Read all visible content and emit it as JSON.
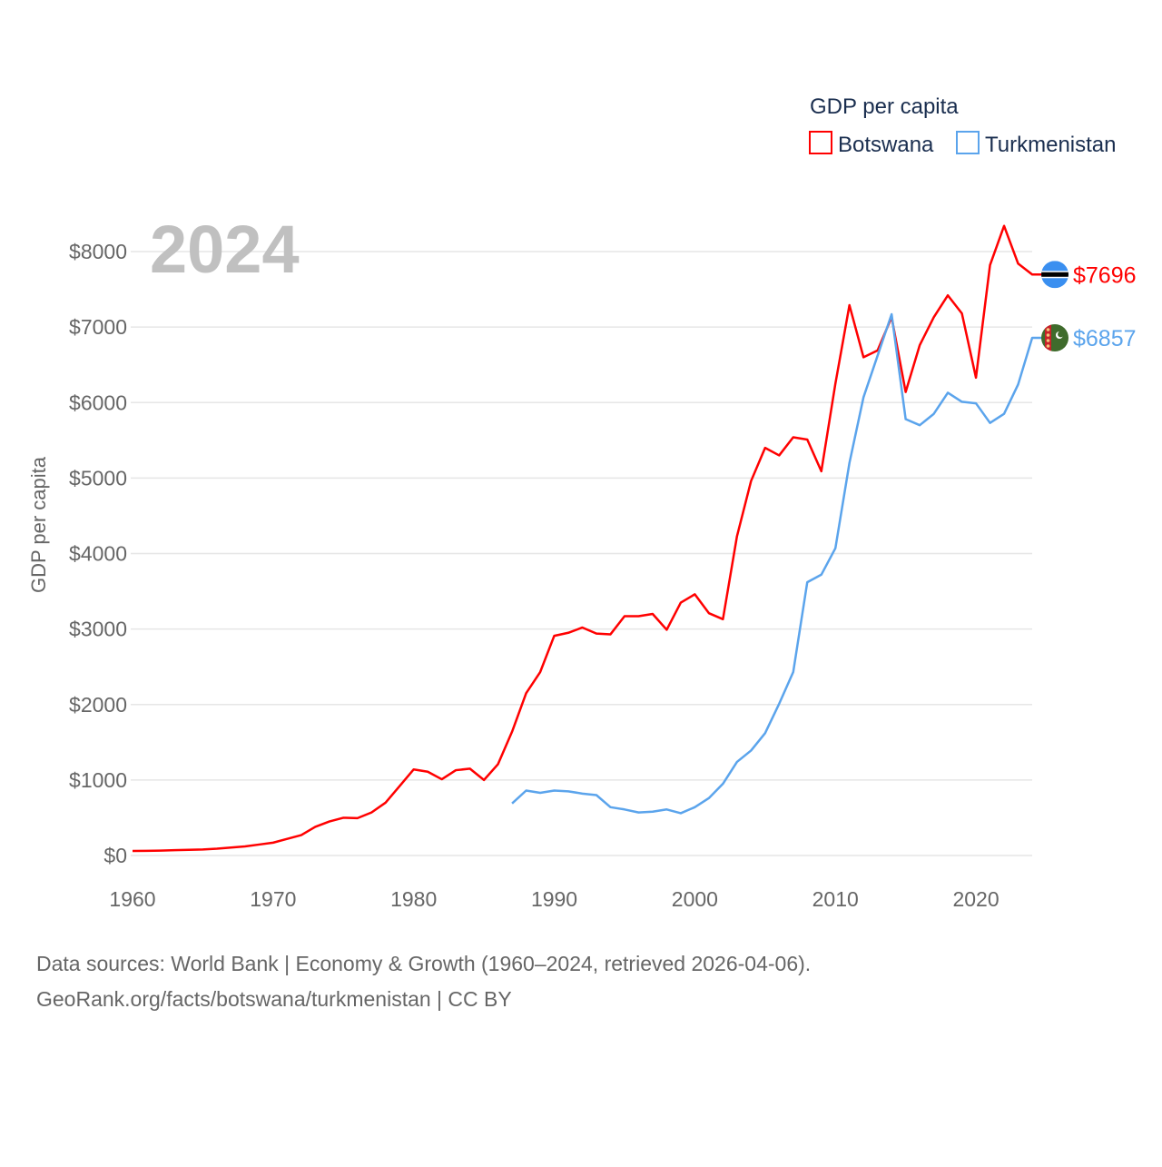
{
  "chart_data": {
    "type": "line",
    "title": "",
    "year_label": "2024",
    "xlabel": "",
    "ylabel": "GDP per capita",
    "xlim": [
      1960,
      2024
    ],
    "ylim": [
      0,
      8000
    ],
    "grid": true,
    "x_ticks": [
      1960,
      1970,
      1980,
      1990,
      2000,
      2010,
      2020
    ],
    "x_tick_labels": [
      "1960",
      "1970",
      "1980",
      "1990",
      "2000",
      "2010",
      "2020"
    ],
    "y_ticks": [
      0,
      1000,
      2000,
      3000,
      4000,
      5000,
      6000,
      7000,
      8000
    ],
    "y_tick_labels": [
      "$0",
      "$1000",
      "$2000",
      "$3000",
      "$4000",
      "$5000",
      "$6000",
      "$7000",
      "$8000"
    ],
    "legend": {
      "title": "GDP per capita",
      "position": "top-right"
    },
    "series": [
      {
        "name": "Botswana",
        "color": "#ff0000",
        "flag": "botswana-flag",
        "end_label": "$7696",
        "start_year": 1960,
        "values": [
          60,
          62,
          65,
          70,
          75,
          80,
          90,
          105,
          120,
          145,
          170,
          220,
          270,
          380,
          450,
          500,
          495,
          570,
          700,
          920,
          1140,
          1110,
          1010,
          1130,
          1150,
          1000,
          1210,
          1640,
          2150,
          2430,
          2910,
          2950,
          3020,
          2940,
          2930,
          3170,
          3170,
          3200,
          2990,
          3350,
          3460,
          3210,
          3130,
          4230,
          4960,
          5400,
          5300,
          5540,
          5510,
          5090,
          6250,
          7290,
          6600,
          6690,
          7130,
          6140,
          6760,
          7130,
          7420,
          7180,
          6330,
          7820,
          8340,
          7840,
          7696
        ]
      },
      {
        "name": "Turkmenistan",
        "color": "#5ba4ec",
        "flag": "turkmenistan-flag",
        "end_label": "$6857",
        "start_year": 1987,
        "values": [
          690,
          860,
          830,
          860,
          850,
          820,
          800,
          640,
          610,
          570,
          580,
          610,
          560,
          640,
          760,
          950,
          1240,
          1390,
          1620,
          2010,
          2430,
          3620,
          3720,
          4070,
          5200,
          6070,
          6620,
          7170,
          5780,
          5700,
          5850,
          6130,
          6010,
          5990,
          5730,
          5850,
          6240,
          6857
        ]
      }
    ]
  },
  "footer": {
    "line1": "Data sources: World Bank | Economy & Growth (1960–2024, retrieved 2026-04-06).",
    "line2": "GeoRank.org/facts/botswana/turkmenistan | CC BY"
  }
}
